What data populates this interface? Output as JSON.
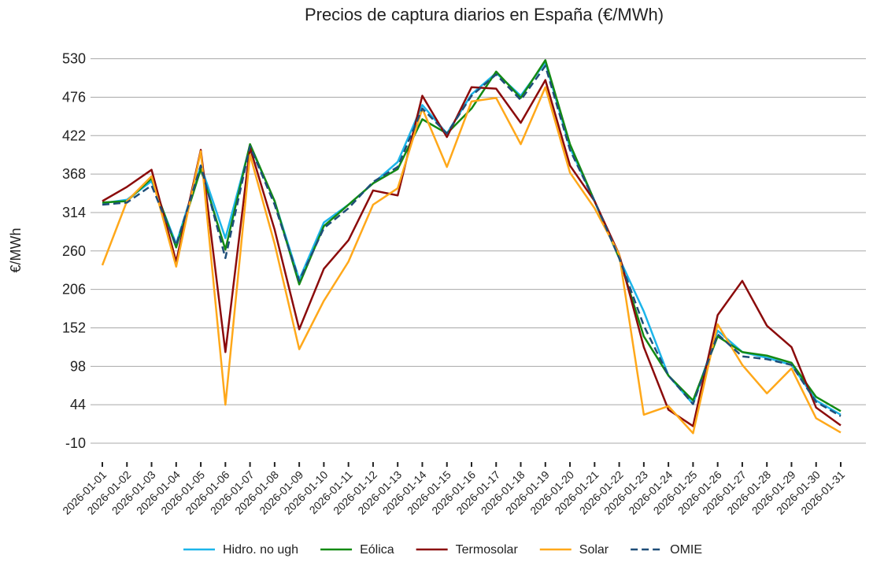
{
  "chart_data": {
    "type": "line",
    "title": "Precios de captura diarios en España (€/MWh)",
    "y_label": "€/MWh",
    "categories": [
      "2026-01-01",
      "2026-01-02",
      "2026-01-03",
      "2026-01-04",
      "2026-01-05",
      "2026-01-06",
      "2026-01-07",
      "2026-01-08",
      "2026-01-09",
      "2026-01-10",
      "2026-01-11",
      "2026-01-12",
      "2026-01-13",
      "2026-01-14",
      "2026-01-15",
      "2026-01-16",
      "2026-01-17",
      "2026-01-18",
      "2026-01-19",
      "2026-01-20",
      "2026-01-21",
      "2026-01-22",
      "2026-01-23",
      "2026-01-24",
      "2026-01-25",
      "2026-01-26",
      "2026-01-27",
      "2026-01-28",
      "2026-01-29",
      "2026-01-30",
      "2026-01-31"
    ],
    "series": [
      {
        "name": "Hidro. no ugh",
        "color": "#1cb5ea",
        "values": [
          327,
          332,
          358,
          270,
          380,
          278,
          408,
          330,
          220,
          300,
          325,
          355,
          385,
          465,
          425,
          480,
          510,
          478,
          525,
          405,
          330,
          250,
          175,
          85,
          45,
          148,
          118,
          110,
          100,
          50,
          30
        ]
      },
      {
        "name": "Eólica",
        "color": "#138a13",
        "values": [
          328,
          330,
          362,
          265,
          375,
          262,
          410,
          330,
          213,
          295,
          325,
          355,
          375,
          445,
          425,
          460,
          512,
          475,
          528,
          410,
          330,
          250,
          140,
          85,
          50,
          140,
          118,
          113,
          103,
          55,
          35
        ]
      },
      {
        "name": "Termosolar",
        "color": "#8b0b0b",
        "values": [
          330,
          350,
          374,
          245,
          402,
          118,
          405,
          290,
          150,
          235,
          275,
          345,
          338,
          478,
          420,
          490,
          488,
          440,
          500,
          380,
          330,
          255,
          125,
          37,
          14,
          170,
          218,
          155,
          125,
          40,
          15
        ]
      },
      {
        "name": "Solar",
        "color": "#ffa81a",
        "values": [
          240,
          330,
          365,
          238,
          400,
          44,
          395,
          270,
          122,
          190,
          245,
          325,
          348,
          460,
          378,
          470,
          475,
          410,
          490,
          370,
          320,
          255,
          30,
          42,
          4,
          157,
          100,
          60,
          95,
          25,
          5
        ]
      },
      {
        "name": "OMIE",
        "color": "#1f4e79",
        "dash": true,
        "values": [
          325,
          328,
          352,
          268,
          380,
          250,
          407,
          325,
          218,
          292,
          320,
          357,
          378,
          460,
          425,
          478,
          508,
          472,
          520,
          402,
          330,
          250,
          155,
          85,
          45,
          143,
          112,
          108,
          100,
          48,
          28
        ]
      }
    ],
    "ylim": [
      -31,
      555
    ],
    "yticks": [
      -10,
      44,
      98,
      152,
      206,
      260,
      314,
      368,
      422,
      476,
      530
    ],
    "grid": true,
    "legend": "bottom"
  }
}
